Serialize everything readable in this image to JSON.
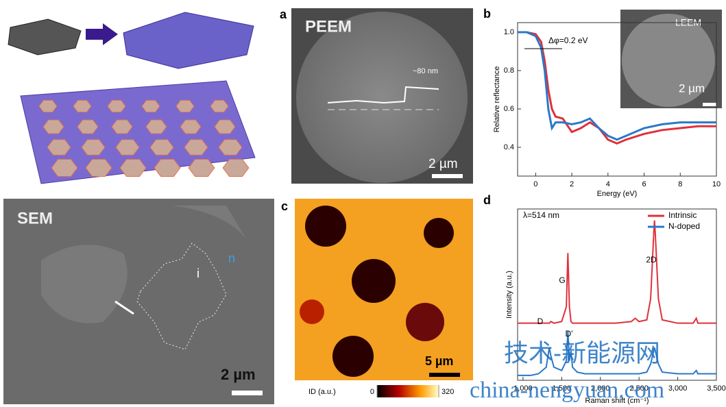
{
  "panels": {
    "a": {
      "label": "a",
      "title": "PEEM",
      "annotation": "~80 nm",
      "scale": "2 µm"
    },
    "sem": {
      "title": "SEM",
      "region_i": "i",
      "region_n": "n",
      "scale": "2 µm"
    },
    "c": {
      "label": "c",
      "scale": "5 µm",
      "colorbar_label": "ID (a.u.)",
      "colorbar_lim": [
        0,
        320
      ],
      "colorbar_ticks": [
        0,
        320
      ]
    }
  },
  "chart_data": [
    {
      "type": "line",
      "panel_label": "b",
      "xlabel": "Energy (eV)",
      "ylabel": "Relative reflectance",
      "annotation": "Δφ=0.2 eV",
      "inset_title": "LEEM",
      "inset_scale": "2 µm",
      "x": [
        -1,
        -0.5,
        0,
        0.3,
        0.5,
        0.7,
        0.9,
        1.1,
        1.5,
        2,
        2.5,
        3,
        3.5,
        4,
        4.5,
        5,
        6,
        7,
        8,
        9,
        10
      ],
      "series": [
        {
          "color": "#e0303a",
          "values": [
            1.0,
            1.0,
            0.99,
            0.95,
            0.85,
            0.7,
            0.6,
            0.56,
            0.55,
            0.48,
            0.5,
            0.53,
            0.5,
            0.44,
            0.42,
            0.44,
            0.47,
            0.49,
            0.5,
            0.51,
            0.51
          ]
        },
        {
          "color": "#2a78c8",
          "values": [
            1.0,
            1.0,
            0.98,
            0.92,
            0.8,
            0.6,
            0.5,
            0.53,
            0.53,
            0.52,
            0.53,
            0.55,
            0.5,
            0.46,
            0.44,
            0.46,
            0.5,
            0.52,
            0.53,
            0.53,
            0.53
          ]
        }
      ],
      "xlim": [
        -1,
        10
      ],
      "ylim": [
        0.25,
        1.05
      ],
      "xticks": [
        0,
        2,
        4,
        6,
        8,
        10
      ],
      "yticks": [
        0.4,
        0.6,
        0.8,
        {
          "value": 1,
          "label": "1.0"
        }
      ]
    },
    {
      "type": "line",
      "panel_label": "d",
      "xlabel": "Raman shift (cm⁻¹)",
      "ylabel": "Intensity (a.u.)",
      "annotation": "λ=514 nm",
      "peak_labels": [
        "G",
        "2D",
        "D",
        "D'"
      ],
      "legend": "top-right",
      "x": [
        930,
        1000,
        1100,
        1200,
        1300,
        1340,
        1360,
        1400,
        1500,
        1560,
        1580,
        1600,
        1620,
        1640,
        1700,
        1800,
        2000,
        2200,
        2400,
        2450,
        2500,
        2600,
        2650,
        2690,
        2700,
        2710,
        2750,
        2800,
        3000,
        3200,
        3240,
        3260,
        3300,
        3500
      ],
      "series": [
        {
          "name": "Intrinsic",
          "color": "#e0303a",
          "values": [
            0.35,
            0.35,
            0.35,
            0.35,
            0.35,
            0.35,
            0.36,
            0.35,
            0.36,
            0.45,
            0.78,
            0.45,
            0.36,
            0.35,
            0.35,
            0.35,
            0.35,
            0.35,
            0.36,
            0.38,
            0.36,
            0.37,
            0.5,
            0.9,
            0.98,
            0.9,
            0.5,
            0.37,
            0.35,
            0.35,
            0.38,
            0.35,
            0.35,
            0.35
          ]
        },
        {
          "name": "N-doped",
          "color": "#2a78c8",
          "values": [
            0.03,
            0.03,
            0.03,
            0.04,
            0.08,
            0.2,
            0.15,
            0.08,
            0.06,
            0.12,
            0.3,
            0.12,
            0.18,
            0.08,
            0.05,
            0.04,
            0.04,
            0.04,
            0.04,
            0.04,
            0.04,
            0.05,
            0.1,
            0.18,
            0.2,
            0.18,
            0.1,
            0.05,
            0.04,
            0.04,
            0.06,
            0.04,
            0.04,
            0.04
          ]
        }
      ],
      "xlim": [
        930,
        3500
      ],
      "ylim": [
        0,
        1.05
      ],
      "xticks": [
        {
          "value": 1000,
          "label": "1,000"
        },
        {
          "value": 1500,
          "label": "1,500"
        },
        {
          "value": 2000,
          "label": "2,000"
        },
        {
          "value": 2500,
          "label": "2,500"
        },
        {
          "value": 3000,
          "label": "3,000"
        },
        {
          "value": 3500,
          "label": "3,500"
        }
      ]
    }
  ],
  "watermark": [
    "技术-新能源网",
    "china-nengyuan.com"
  ]
}
